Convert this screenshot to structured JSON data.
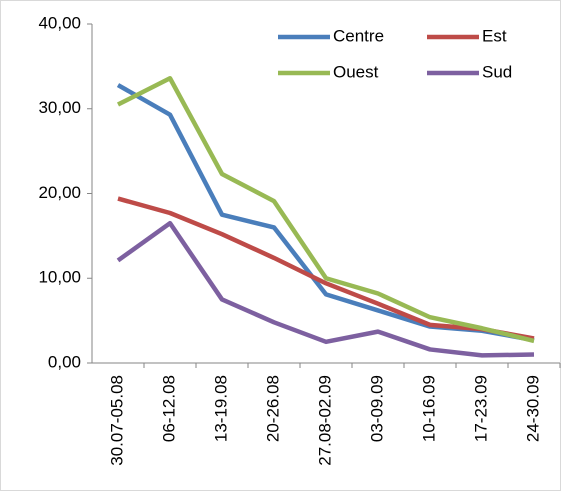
{
  "chart_data": {
    "type": "line",
    "categories": [
      "30.07-05.08",
      "06-12.08",
      "13-19.08",
      "20-26.08",
      "27.08-02.09",
      "03-09.09",
      "10-16.09",
      "17-23.09",
      "24-30.09"
    ],
    "series": [
      {
        "name": "Centre",
        "color": "#4a7ebb",
        "values": [
          32.8,
          29.3,
          17.5,
          16.0,
          8.1,
          6.2,
          4.3,
          3.8,
          2.7
        ]
      },
      {
        "name": "Est",
        "color": "#be4b48",
        "values": [
          19.4,
          17.7,
          15.2,
          12.4,
          9.4,
          7.0,
          4.5,
          4.0,
          2.9
        ]
      },
      {
        "name": "Ouest",
        "color": "#98b954",
        "values": [
          30.5,
          33.6,
          22.3,
          19.1,
          10.0,
          8.2,
          5.4,
          4.1,
          2.6
        ]
      },
      {
        "name": "Sud",
        "color": "#7d60a0",
        "values": [
          12.1,
          16.5,
          7.5,
          4.8,
          2.5,
          3.7,
          1.6,
          0.9,
          1.0
        ]
      }
    ],
    "ylim": [
      0,
      40
    ],
    "yticks": [
      {
        "value": 0,
        "label": "0,00"
      },
      {
        "value": 10,
        "label": "10,00"
      },
      {
        "value": 20,
        "label": "20,00"
      },
      {
        "value": 30,
        "label": "30,00"
      },
      {
        "value": 40,
        "label": "40,00"
      }
    ]
  }
}
